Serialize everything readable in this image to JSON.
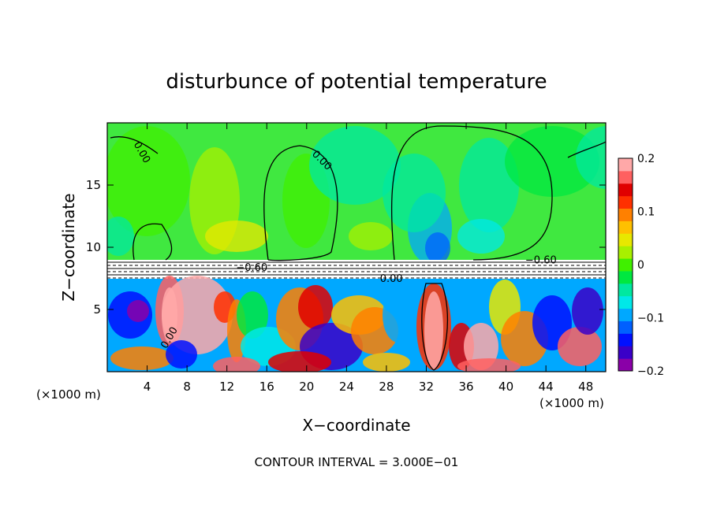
{
  "chart_data": {
    "type": "heatmap",
    "title": "disturbunce of potential temperature",
    "xlabel": "X−coordinate",
    "ylabel": "Z−coordinate",
    "x_unit_left": "(×1000 m)",
    "x_unit_right": "(×1000 m)",
    "xlim": [
      0,
      50
    ],
    "ylim": [
      0,
      20
    ],
    "x_ticks": [
      4,
      8,
      12,
      16,
      20,
      24,
      28,
      32,
      36,
      40,
      44,
      48
    ],
    "y_ticks": [
      5,
      10,
      15
    ],
    "colorbar": {
      "range": [
        -0.2,
        0.2
      ],
      "tick_labels": [
        "0.2",
        "0.1",
        "0",
        "−0.1",
        "−0.2"
      ],
      "tick_values": [
        0.2,
        0.1,
        0,
        -0.1,
        -0.2
      ]
    },
    "contour_labels": [
      {
        "text": "0.00",
        "x": 3.2,
        "z": 17.5,
        "rot": 60
      },
      {
        "text": "0.00",
        "x": 21.3,
        "z": 16.8,
        "rot": 45
      },
      {
        "text": "−0.60",
        "x": 43.5,
        "z": 8.7,
        "rot": 0
      },
      {
        "text": "−0.60",
        "x": 14.5,
        "z": 8.1,
        "rot": 0
      },
      {
        "text": "0.00",
        "x": 28.5,
        "z": 7.2,
        "rot": 0
      },
      {
        "text": "0.00",
        "x": 6.5,
        "z": 2.6,
        "rot": -60
      }
    ],
    "annotation": "CONTOUR INTERVAL = 3.000E−01"
  },
  "colors": {
    "palette": [
      "#8a00a8",
      "#3a00c8",
      "#0010ff",
      "#0060ff",
      "#00a8ff",
      "#00e8e8",
      "#00e8a0",
      "#00e840",
      "#40f000",
      "#a8f000",
      "#e8e800",
      "#ffc000",
      "#ff8000",
      "#ff3000",
      "#e00000",
      "#ff6060",
      "#ffa8a8"
    ]
  }
}
